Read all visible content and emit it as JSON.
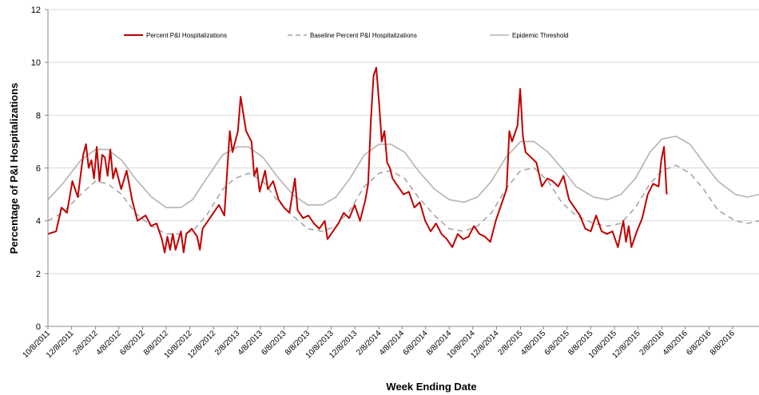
{
  "chart_data": {
    "type": "line",
    "xlabel": "Week Ending Date",
    "ylabel": "Percentage of P&I Hospitalizations",
    "ylim": [
      0,
      12
    ],
    "xlim": [
      "10/8/2011",
      "10/15/2016"
    ],
    "yticks": [
      0,
      2,
      4,
      6,
      8,
      10,
      12
    ],
    "xticks": [
      "10/8/2011",
      "12/8/2011",
      "2/8/2012",
      "4/8/2012",
      "6/8/2012",
      "8/8/2012",
      "10/8/2012",
      "12/8/2012",
      "2/8/2013",
      "4/8/2013",
      "6/8/2013",
      "8/8/2013",
      "10/8/2013",
      "12/8/2013",
      "2/8/2014",
      "4/8/2014",
      "6/8/2014",
      "8/8/2014",
      "10/8/2014",
      "12/8/2014",
      "2/8/2015",
      "4/8/2015",
      "6/8/2015",
      "8/8/2015",
      "10/8/2015",
      "12/8/2015",
      "2/8/2016",
      "4/8/2016",
      "6/8/2016",
      "8/8/2016"
    ],
    "grid": "horizontal",
    "legend_position": "top",
    "series": [
      {
        "name": "Percent P&I Hospitalizations",
        "style": "solid",
        "color": "#c00000",
        "points": [
          [
            "10/8/2011",
            3.5
          ],
          [
            "10/29/2011",
            3.6
          ],
          [
            "11/12/2011",
            4.5
          ],
          [
            "11/26/2011",
            4.3
          ],
          [
            "12/10/2011",
            5.5
          ],
          [
            "12/24/2011",
            4.9
          ],
          [
            "1/7/2012",
            6.5
          ],
          [
            "1/14/2012",
            6.9
          ],
          [
            "1/21/2012",
            6.0
          ],
          [
            "1/28/2012",
            6.3
          ],
          [
            "2/4/2012",
            5.6
          ],
          [
            "2/11/2012",
            6.8
          ],
          [
            "2/18/2012",
            5.5
          ],
          [
            "2/25/2012",
            6.5
          ],
          [
            "3/3/2012",
            6.4
          ],
          [
            "3/10/2012",
            5.7
          ],
          [
            "3/17/2012",
            6.7
          ],
          [
            "3/24/2012",
            5.6
          ],
          [
            "3/31/2012",
            6.0
          ],
          [
            "4/14/2012",
            5.2
          ],
          [
            "4/28/2012",
            5.9
          ],
          [
            "5/12/2012",
            4.8
          ],
          [
            "5/26/2012",
            4.0
          ],
          [
            "6/16/2012",
            4.2
          ],
          [
            "6/30/2012",
            3.8
          ],
          [
            "7/14/2012",
            3.9
          ],
          [
            "7/28/2012",
            3.3
          ],
          [
            "8/4/2012",
            2.8
          ],
          [
            "8/11/2012",
            3.4
          ],
          [
            "8/18/2012",
            2.9
          ],
          [
            "8/25/2012",
            3.5
          ],
          [
            "9/1/2012",
            2.9
          ],
          [
            "9/15/2012",
            3.6
          ],
          [
            "9/22/2012",
            2.8
          ],
          [
            "9/29/2012",
            3.5
          ],
          [
            "10/13/2012",
            3.7
          ],
          [
            "10/27/2012",
            3.4
          ],
          [
            "11/3/2012",
            2.9
          ],
          [
            "11/10/2012",
            3.7
          ],
          [
            "11/24/2012",
            4.0
          ],
          [
            "12/8/2012",
            4.3
          ],
          [
            "12/22/2012",
            4.6
          ],
          [
            "1/5/2013",
            4.2
          ],
          [
            "1/19/2013",
            7.4
          ],
          [
            "1/26/2013",
            6.6
          ],
          [
            "2/9/2013",
            7.4
          ],
          [
            "2/16/2013",
            8.7
          ],
          [
            "3/2/2013",
            7.4
          ],
          [
            "3/16/2013",
            7.0
          ],
          [
            "3/23/2013",
            5.7
          ],
          [
            "3/30/2013",
            6.0
          ],
          [
            "4/6/2013",
            5.1
          ],
          [
            "4/20/2013",
            5.9
          ],
          [
            "4/27/2013",
            5.2
          ],
          [
            "5/11/2013",
            5.5
          ],
          [
            "5/25/2013",
            4.8
          ],
          [
            "6/8/2013",
            4.5
          ],
          [
            "6/22/2013",
            4.3
          ],
          [
            "7/6/2013",
            5.6
          ],
          [
            "7/13/2013",
            4.4
          ],
          [
            "7/27/2013",
            4.1
          ],
          [
            "8/10/2013",
            4.2
          ],
          [
            "8/24/2013",
            3.9
          ],
          [
            "9/7/2013",
            3.7
          ],
          [
            "9/21/2013",
            4.0
          ],
          [
            "9/28/2013",
            3.3
          ],
          [
            "10/12/2013",
            3.6
          ],
          [
            "10/26/2013",
            3.9
          ],
          [
            "11/9/2013",
            4.3
          ],
          [
            "11/23/2013",
            4.1
          ],
          [
            "12/7/2013",
            4.6
          ],
          [
            "12/21/2013",
            4.0
          ],
          [
            "1/4/2014",
            4.8
          ],
          [
            "1/11/2014",
            5.4
          ],
          [
            "1/18/2014",
            7.8
          ],
          [
            "1/25/2014",
            9.5
          ],
          [
            "2/1/2014",
            9.8
          ],
          [
            "2/8/2014",
            8.5
          ],
          [
            "2/15/2014",
            7.0
          ],
          [
            "2/22/2014",
            7.4
          ],
          [
            "3/1/2014",
            6.2
          ],
          [
            "3/8/2014",
            6.0
          ],
          [
            "3/15/2014",
            5.6
          ],
          [
            "3/29/2014",
            5.3
          ],
          [
            "4/12/2014",
            5.0
          ],
          [
            "4/26/2014",
            5.1
          ],
          [
            "5/10/2014",
            4.5
          ],
          [
            "5/24/2014",
            4.7
          ],
          [
            "6/7/2014",
            4.0
          ],
          [
            "6/21/2014",
            3.6
          ],
          [
            "7/5/2014",
            3.9
          ],
          [
            "7/19/2014",
            3.5
          ],
          [
            "8/2/2014",
            3.3
          ],
          [
            "8/16/2014",
            3.0
          ],
          [
            "8/30/2014",
            3.5
          ],
          [
            "9/13/2014",
            3.3
          ],
          [
            "9/27/2014",
            3.4
          ],
          [
            "10/11/2014",
            3.8
          ],
          [
            "10/25/2014",
            3.5
          ],
          [
            "11/8/2014",
            3.4
          ],
          [
            "11/22/2014",
            3.2
          ],
          [
            "12/6/2014",
            4.0
          ],
          [
            "12/20/2014",
            4.6
          ],
          [
            "1/3/2015",
            5.2
          ],
          [
            "1/10/2015",
            7.4
          ],
          [
            "1/17/2015",
            7.0
          ],
          [
            "1/24/2015",
            7.3
          ],
          [
            "1/31/2015",
            7.6
          ],
          [
            "2/7/2015",
            9.0
          ],
          [
            "2/14/2015",
            7.2
          ],
          [
            "2/21/2015",
            6.6
          ],
          [
            "3/7/2015",
            6.4
          ],
          [
            "3/21/2015",
            6.2
          ],
          [
            "4/4/2015",
            5.3
          ],
          [
            "4/18/2015",
            5.6
          ],
          [
            "5/2/2015",
            5.5
          ],
          [
            "5/16/2015",
            5.3
          ],
          [
            "5/30/2015",
            5.7
          ],
          [
            "6/13/2015",
            4.8
          ],
          [
            "6/27/2015",
            4.5
          ],
          [
            "7/11/2015",
            4.2
          ],
          [
            "7/25/2015",
            3.7
          ],
          [
            "8/8/2015",
            3.6
          ],
          [
            "8/22/2015",
            4.2
          ],
          [
            "9/5/2015",
            3.6
          ],
          [
            "9/19/2015",
            3.5
          ],
          [
            "10/3/2015",
            3.6
          ],
          [
            "10/17/2015",
            3.0
          ],
          [
            "10/31/2015",
            4.0
          ],
          [
            "11/7/2015",
            3.2
          ],
          [
            "11/14/2015",
            3.8
          ],
          [
            "11/21/2015",
            3.0
          ],
          [
            "12/5/2015",
            3.6
          ],
          [
            "12/19/2015",
            4.1
          ],
          [
            "1/2/2016",
            5.0
          ],
          [
            "1/16/2016",
            5.4
          ],
          [
            "1/30/2016",
            5.3
          ],
          [
            "2/6/2016",
            6.3
          ],
          [
            "2/13/2016",
            6.8
          ],
          [
            "2/20/2016",
            5.0
          ]
        ]
      },
      {
        "name": "Baseline Percent P&I Hospitalizations",
        "style": "dashed",
        "color": "#a6a6a6",
        "points": [
          [
            "10/8/2011",
            4.0
          ],
          [
            "11/15/2011",
            4.3
          ],
          [
            "1/1/2012",
            5.0
          ],
          [
            "2/8/2012",
            5.5
          ],
          [
            "3/10/2012",
            5.4
          ],
          [
            "4/15/2012",
            5.0
          ],
          [
            "5/20/2012",
            4.3
          ],
          [
            "7/1/2012",
            3.8
          ],
          [
            "8/8/2012",
            3.5
          ],
          [
            "9/15/2012",
            3.5
          ],
          [
            "10/15/2012",
            3.6
          ],
          [
            "11/20/2012",
            4.2
          ],
          [
            "1/1/2013",
            5.2
          ],
          [
            "2/1/2013",
            5.6
          ],
          [
            "3/8/2013",
            5.8
          ],
          [
            "4/15/2013",
            5.5
          ],
          [
            "5/20/2013",
            4.8
          ],
          [
            "6/30/2013",
            4.2
          ],
          [
            "8/8/2013",
            3.7
          ],
          [
            "9/15/2013",
            3.6
          ],
          [
            "10/20/2013",
            3.8
          ],
          [
            "11/25/2013",
            4.4
          ],
          [
            "1/1/2014",
            5.3
          ],
          [
            "2/8/2014",
            5.8
          ],
          [
            "3/10/2014",
            5.9
          ],
          [
            "4/15/2014",
            5.6
          ],
          [
            "5/20/2014",
            4.9
          ],
          [
            "7/1/2014",
            4.2
          ],
          [
            "8/8/2014",
            3.7
          ],
          [
            "9/15/2014",
            3.6
          ],
          [
            "10/20/2014",
            3.8
          ],
          [
            "11/25/2014",
            4.3
          ],
          [
            "1/1/2015",
            5.2
          ],
          [
            "2/8/2015",
            5.9
          ],
          [
            "3/15/2015",
            6.0
          ],
          [
            "4/20/2015",
            5.5
          ],
          [
            "5/25/2015",
            4.7
          ],
          [
            "7/1/2015",
            4.2
          ],
          [
            "8/15/2015",
            3.9
          ],
          [
            "9/20/2015",
            3.8
          ],
          [
            "10/25/2015",
            3.9
          ],
          [
            "12/1/2015",
            4.5
          ],
          [
            "1/8/2016",
            5.4
          ],
          [
            "2/8/2016",
            5.9
          ],
          [
            "3/15/2016",
            6.1
          ],
          [
            "4/20/2016",
            5.8
          ],
          [
            "5/25/2016",
            5.2
          ],
          [
            "7/1/2016",
            4.4
          ],
          [
            "8/15/2016",
            4.0
          ],
          [
            "9/15/2016",
            3.9
          ],
          [
            "10/15/2016",
            4.0
          ]
        ]
      },
      {
        "name": "Epidemic Threshold",
        "style": "solid",
        "color": "#b3b3b3",
        "points": [
          [
            "10/8/2011",
            4.8
          ],
          [
            "11/15/2011",
            5.4
          ],
          [
            "1/1/2012",
            6.3
          ],
          [
            "2/8/2012",
            6.7
          ],
          [
            "3/10/2012",
            6.7
          ],
          [
            "4/15/2012",
            6.3
          ],
          [
            "5/20/2012",
            5.6
          ],
          [
            "7/1/2012",
            4.9
          ],
          [
            "8/8/2012",
            4.5
          ],
          [
            "9/15/2012",
            4.5
          ],
          [
            "10/15/2012",
            4.8
          ],
          [
            "11/20/2012",
            5.6
          ],
          [
            "1/1/2013",
            6.5
          ],
          [
            "2/8/2013",
            6.8
          ],
          [
            "3/8/2013",
            6.8
          ],
          [
            "4/15/2013",
            6.4
          ],
          [
            "5/20/2013",
            5.7
          ],
          [
            "6/30/2013",
            5.0
          ],
          [
            "8/8/2013",
            4.6
          ],
          [
            "9/15/2013",
            4.6
          ],
          [
            "10/20/2013",
            4.9
          ],
          [
            "11/25/2013",
            5.6
          ],
          [
            "1/1/2014",
            6.5
          ],
          [
            "2/8/2014",
            6.9
          ],
          [
            "3/10/2014",
            6.9
          ],
          [
            "4/15/2014",
            6.6
          ],
          [
            "5/20/2014",
            5.9
          ],
          [
            "7/1/2014",
            5.2
          ],
          [
            "8/8/2014",
            4.8
          ],
          [
            "9/15/2014",
            4.7
          ],
          [
            "10/20/2014",
            4.9
          ],
          [
            "11/25/2014",
            5.5
          ],
          [
            "1/1/2015",
            6.4
          ],
          [
            "2/8/2015",
            7.0
          ],
          [
            "3/15/2015",
            7.0
          ],
          [
            "4/20/2015",
            6.6
          ],
          [
            "5/25/2015",
            6.0
          ],
          [
            "7/1/2015",
            5.3
          ],
          [
            "8/15/2015",
            4.9
          ],
          [
            "9/20/2015",
            4.8
          ],
          [
            "10/25/2015",
            5.0
          ],
          [
            "12/1/2015",
            5.6
          ],
          [
            "1/8/2016",
            6.6
          ],
          [
            "2/8/2016",
            7.1
          ],
          [
            "3/15/2016",
            7.2
          ],
          [
            "4/20/2016",
            6.9
          ],
          [
            "5/25/2016",
            6.2
          ],
          [
            "7/1/2016",
            5.5
          ],
          [
            "8/15/2016",
            5.0
          ],
          [
            "9/15/2016",
            4.9
          ],
          [
            "10/15/2016",
            5.0
          ]
        ]
      }
    ]
  }
}
